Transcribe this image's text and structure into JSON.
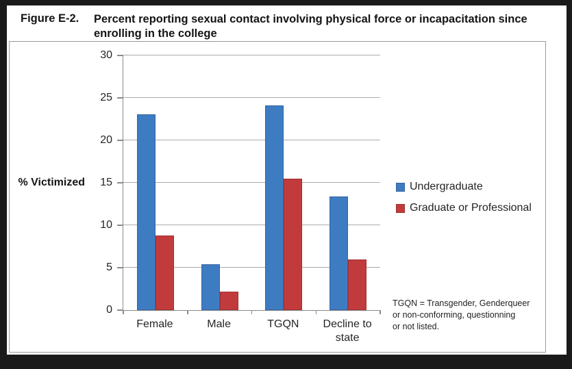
{
  "figure": {
    "label": "Figure E-2.",
    "title_line1": "Percent reporting sexual contact involving physical force or incapacitation since",
    "title_line2": "enrolling in the college"
  },
  "chart_data": {
    "type": "bar",
    "title": "Percent reporting sexual contact involving physical force or incapacitation since enrolling in the college",
    "xlabel": "",
    "ylabel": "% Victimized",
    "categories": [
      "Female",
      "Male",
      "TGQN",
      "Decline to state"
    ],
    "series": [
      {
        "name": "Undergraduate",
        "color": "#3E7CC2",
        "values": [
          23.1,
          5.4,
          24.1,
          13.4
        ]
      },
      {
        "name": "Graduate or Professional",
        "color": "#C23B3C",
        "values": [
          8.8,
          2.2,
          15.5,
          6.0
        ]
      }
    ],
    "ylim": [
      0,
      30
    ],
    "yticks": [
      0,
      5,
      10,
      15,
      20,
      25,
      30
    ],
    "grid": true,
    "legend_position": "right"
  },
  "note": {
    "lines": [
      "TGQN = Transgender, Genderqueer",
      "or non-conforming, questionning",
      "or not listed."
    ]
  },
  "colors": {
    "gridline": "#AAAAAA",
    "axis": "#8A8A8A",
    "frame": "#1A1A1A",
    "page_background": "#FFFFFF"
  }
}
